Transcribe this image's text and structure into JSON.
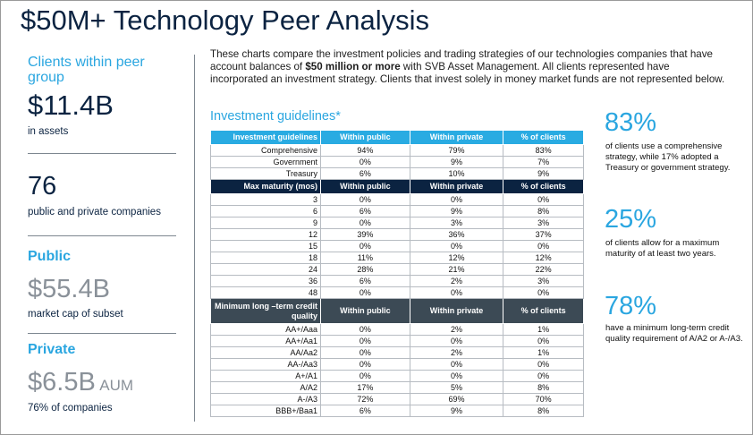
{
  "title": "$50M+ Technology Peer Analysis",
  "sidebar": {
    "peer_label": "Clients within peer group",
    "assets_value": "$11.4B",
    "assets_label": "in assets",
    "companies_value": "76",
    "companies_label": "public and private companies",
    "public_heading": "Public",
    "public_value": "$55.4B",
    "public_label": "market cap of subset",
    "private_heading": "Private",
    "private_value": "$6.5B",
    "private_unit": "AUM",
    "private_label": "76% of companies"
  },
  "intro": {
    "before": "These charts compare the investment policies and trading strategies of our technologies companies that have account balances of ",
    "bold": "$50 million or more",
    "after": " with SVB Asset Management. All clients represented have incorporated an investment strategy. Clients that invest solely in money market funds are not represented below."
  },
  "table": {
    "title": "Investment guidelines*",
    "sections": [
      {
        "header": [
          "Investment guidelines",
          "Within public",
          "Within private",
          "% of clients"
        ],
        "rows": [
          [
            "Comprehensive",
            "94%",
            "79%",
            "83%"
          ],
          [
            "Government",
            "0%",
            "9%",
            "7%"
          ],
          [
            "Treasury",
            "6%",
            "10%",
            "9%"
          ]
        ]
      },
      {
        "header": [
          "Max maturity (mos)",
          "Within public",
          "Within private",
          "% of clients"
        ],
        "rows": [
          [
            "3",
            "0%",
            "0%",
            "0%"
          ],
          [
            "6",
            "6%",
            "9%",
            "8%"
          ],
          [
            "9",
            "0%",
            "3%",
            "3%"
          ],
          [
            "12",
            "39%",
            "36%",
            "37%"
          ],
          [
            "15",
            "0%",
            "0%",
            "0%"
          ],
          [
            "18",
            "11%",
            "12%",
            "12%"
          ],
          [
            "24",
            "28%",
            "21%",
            "22%"
          ],
          [
            "36",
            "6%",
            "2%",
            "3%"
          ],
          [
            "48",
            "0%",
            "0%",
            "0%"
          ]
        ]
      },
      {
        "header": [
          "Minimum long –term credit quality",
          "Within public",
          "Within private",
          "% of clients"
        ],
        "rows": [
          [
            "AA+/Aaa",
            "0%",
            "2%",
            "1%"
          ],
          [
            "AA+/Aa1",
            "0%",
            "0%",
            "0%"
          ],
          [
            "AA/Aa2",
            "0%",
            "2%",
            "1%"
          ],
          [
            "AA-/Aa3",
            "0%",
            "0%",
            "0%"
          ],
          [
            "A+/A1",
            "0%",
            "0%",
            "0%"
          ],
          [
            "A/A2",
            "17%",
            "5%",
            "8%"
          ],
          [
            "A-/A3",
            "72%",
            "69%",
            "70%"
          ],
          [
            "BBB+/Baa1",
            "6%",
            "9%",
            "8%"
          ]
        ]
      }
    ]
  },
  "callouts": [
    {
      "value": "83%",
      "text": "of clients use a comprehensive strategy, while 17% adopted a Treasury or government strategy."
    },
    {
      "value": "25%",
      "text": "of clients allow for a maximum maturity of at least two years."
    },
    {
      "value": "78%",
      "text": "have a minimum long-term credit quality requirement of A/A2 or A-/A3."
    }
  ]
}
